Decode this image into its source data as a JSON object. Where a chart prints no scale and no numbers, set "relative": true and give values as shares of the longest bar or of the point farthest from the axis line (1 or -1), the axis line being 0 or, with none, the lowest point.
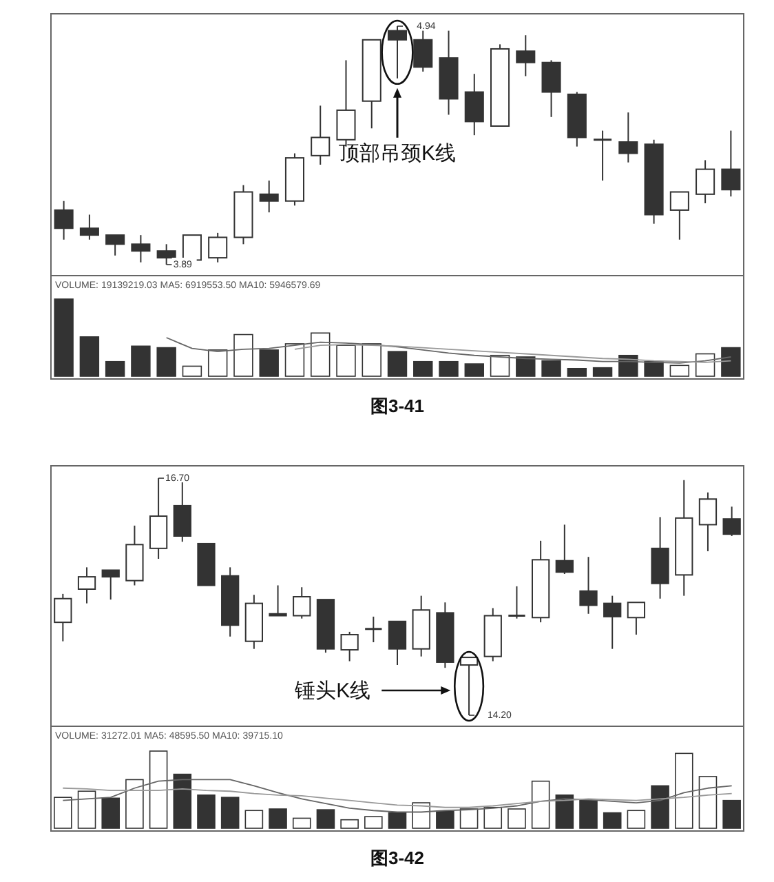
{
  "chart_data": [
    {
      "type": "candlestick",
      "categories": [
        null,
        null,
        null,
        null,
        null,
        null,
        null,
        null,
        null,
        null,
        null,
        null,
        null,
        null,
        null,
        null,
        null,
        null,
        null,
        null,
        null,
        null,
        null,
        null,
        null,
        null,
        null
      ],
      "ohlc": [
        [
          4.13,
          4.17,
          4.0,
          4.05
        ],
        [
          4.05,
          4.11,
          4.0,
          4.02
        ],
        [
          4.02,
          4.02,
          3.93,
          3.98
        ],
        [
          3.98,
          4.02,
          3.9,
          3.95
        ],
        [
          3.95,
          3.98,
          3.89,
          3.92
        ],
        [
          3.91,
          4.02,
          3.91,
          4.02
        ],
        [
          3.92,
          4.03,
          3.9,
          4.01
        ],
        [
          4.01,
          4.24,
          3.98,
          4.21
        ],
        [
          4.2,
          4.26,
          4.12,
          4.17
        ],
        [
          4.17,
          4.38,
          4.15,
          4.36
        ],
        [
          4.37,
          4.59,
          4.33,
          4.45
        ],
        [
          4.44,
          4.79,
          4.41,
          4.57
        ],
        [
          4.61,
          4.88,
          4.49,
          4.88
        ],
        [
          4.92,
          4.94,
          4.71,
          4.88
        ],
        [
          4.88,
          4.92,
          4.74,
          4.76
        ],
        [
          4.8,
          4.92,
          4.55,
          4.62
        ],
        [
          4.65,
          4.73,
          4.46,
          4.52
        ],
        [
          4.5,
          4.86,
          4.5,
          4.84
        ],
        [
          4.83,
          4.9,
          4.72,
          4.78
        ],
        [
          4.78,
          4.79,
          4.54,
          4.65
        ],
        [
          4.64,
          4.65,
          4.41,
          4.45
        ],
        [
          4.44,
          4.48,
          4.26,
          4.44
        ],
        [
          4.43,
          4.56,
          4.34,
          4.38
        ],
        [
          4.42,
          4.44,
          4.07,
          4.11
        ],
        [
          4.13,
          4.21,
          4.0,
          4.21
        ],
        [
          4.2,
          4.35,
          4.16,
          4.31
        ],
        [
          4.31,
          4.48,
          4.19,
          4.22
        ]
      ],
      "annotations": [
        "4.94",
        "3.89",
        "顶部吊颈K线"
      ]
    },
    {
      "type": "bar",
      "relative": true,
      "categories": [
        null,
        null,
        null,
        null,
        null,
        null,
        null,
        null,
        null,
        null,
        null,
        null,
        null,
        null,
        null,
        null,
        null,
        null,
        null,
        null,
        null,
        null,
        null,
        null,
        null,
        null,
        null
      ],
      "series": [
        {
          "type": "bar",
          "colors": [
            "#333333",
            "#333333",
            "#333333",
            "#333333",
            "#333333",
            "#ffffff",
            "#ffffff",
            "#ffffff",
            "#333333",
            "#ffffff",
            "#ffffff",
            "#ffffff",
            "#ffffff",
            "#333333",
            "#333333",
            "#333333",
            "#333333",
            "#ffffff",
            "#333333",
            "#333333",
            "#333333",
            "#333333",
            "#333333",
            "#333333",
            "#ffffff",
            "#ffffff",
            "#333333"
          ],
          "values": [
            1,
            0.51,
            0.19,
            0.39,
            0.37,
            0.13,
            0.34,
            0.54,
            0.34,
            0.42,
            0.56,
            0.4,
            0.42,
            0.32,
            0.19,
            0.19,
            0.16,
            0.27,
            0.25,
            0.2,
            0.1,
            0.11,
            0.27,
            0.19,
            0.14,
            0.29,
            0.37
          ]
        },
        {
          "type": "line",
          "color": "#666666",
          "values": [
            null,
            null,
            null,
            null,
            0.5,
            0.36,
            0.32,
            0.35,
            0.36,
            0.4,
            0.44,
            0.43,
            0.41,
            0.38,
            0.34,
            0.3,
            0.27,
            0.25,
            0.23,
            0.22,
            0.21,
            0.19,
            0.19,
            0.18,
            0.17,
            0.2,
            0.25
          ]
        },
        {
          "type": "line",
          "color": "#999999",
          "values": [
            null,
            null,
            null,
            null,
            null,
            null,
            null,
            null,
            null,
            0.35,
            0.4,
            0.41,
            0.4,
            0.39,
            0.37,
            0.35,
            0.33,
            0.31,
            0.29,
            0.27,
            0.25,
            0.23,
            0.22,
            0.2,
            0.19,
            0.18,
            0.2
          ]
        }
      ],
      "annotations": [
        "VOLUME: 19139219.03  MA5: 6919553.50  MA10: 5946579.69",
        "图3-41"
      ]
    },
    {
      "type": "candlestick",
      "categories": [
        null,
        null,
        null,
        null,
        null,
        null,
        null,
        null,
        null,
        null,
        null,
        null,
        null,
        null,
        null,
        null,
        null,
        null,
        null,
        null,
        null,
        null,
        null,
        null,
        null,
        null,
        null,
        null,
        null
      ],
      "ohlc": [
        [
          15.18,
          15.48,
          14.98,
          15.43
        ],
        [
          15.53,
          15.76,
          15.38,
          15.66
        ],
        [
          15.73,
          15.73,
          15.42,
          15.66
        ],
        [
          15.62,
          16.2,
          15.57,
          16.0
        ],
        [
          15.96,
          16.7,
          15.85,
          16.3
        ],
        [
          16.41,
          16.66,
          16.03,
          16.09
        ],
        [
          16.01,
          16.01,
          15.57,
          15.57
        ],
        [
          15.67,
          15.76,
          15.03,
          15.15
        ],
        [
          14.98,
          15.47,
          14.9,
          15.38
        ],
        [
          15.27,
          15.57,
          15.25,
          15.25
        ],
        [
          15.25,
          15.55,
          15.22,
          15.45
        ],
        [
          15.42,
          15.42,
          14.86,
          14.9
        ],
        [
          14.89,
          15.08,
          14.77,
          15.05
        ],
        [
          15.11,
          15.24,
          14.97,
          15.11
        ],
        [
          15.19,
          15.19,
          14.73,
          14.9
        ],
        [
          14.9,
          15.46,
          14.82,
          15.31
        ],
        [
          15.28,
          15.39,
          14.7,
          14.76
        ],
        [
          14.73,
          14.81,
          14.2,
          14.81
        ],
        [
          14.82,
          15.33,
          14.77,
          15.25
        ],
        [
          15.25,
          15.56,
          15.22,
          15.25
        ],
        [
          15.23,
          16.04,
          15.18,
          15.84
        ],
        [
          15.83,
          16.21,
          15.69,
          15.71
        ],
        [
          15.51,
          15.87,
          15.27,
          15.36
        ],
        [
          15.38,
          15.46,
          14.9,
          15.24
        ],
        [
          15.23,
          15.39,
          15.05,
          15.39
        ],
        [
          15.96,
          16.29,
          15.43,
          15.59
        ],
        [
          15.68,
          16.68,
          15.46,
          16.28
        ],
        [
          16.21,
          16.55,
          15.93,
          16.48
        ],
        [
          16.27,
          16.4,
          16.09,
          16.11
        ]
      ],
      "annotations": [
        "16.70",
        "14.20",
        "锤头K线"
      ]
    },
    {
      "type": "bar",
      "relative": true,
      "categories": [
        null,
        null,
        null,
        null,
        null,
        null,
        null,
        null,
        null,
        null,
        null,
        null,
        null,
        null,
        null,
        null,
        null,
        null,
        null,
        null,
        null,
        null,
        null,
        null,
        null,
        null,
        null,
        null,
        null
      ],
      "series": [
        {
          "type": "bar",
          "colors": [
            "#ffffff",
            "#ffffff",
            "#333333",
            "#ffffff",
            "#ffffff",
            "#333333",
            "#333333",
            "#333333",
            "#ffffff",
            "#333333",
            "#ffffff",
            "#333333",
            "#ffffff",
            "#ffffff",
            "#333333",
            "#ffffff",
            "#333333",
            "#ffffff",
            "#ffffff",
            "#ffffff",
            "#ffffff",
            "#333333",
            "#333333",
            "#333333",
            "#ffffff",
            "#333333",
            "#ffffff",
            "#ffffff",
            "#333333"
          ],
          "values": [
            0.4,
            0.48,
            0.39,
            0.63,
            1,
            0.7,
            0.43,
            0.4,
            0.23,
            0.25,
            0.13,
            0.24,
            0.11,
            0.15,
            0.2,
            0.33,
            0.22,
            0.25,
            0.27,
            0.25,
            0.61,
            0.43,
            0.36,
            0.2,
            0.23,
            0.55,
            0.97,
            0.67,
            0.36
          ]
        },
        {
          "type": "line",
          "color": "#666666",
          "values": [
            0.36,
            0.38,
            0.4,
            0.52,
            0.61,
            0.63,
            0.63,
            0.63,
            0.55,
            0.46,
            0.38,
            0.32,
            0.26,
            0.23,
            0.21,
            0.21,
            0.23,
            0.24,
            0.26,
            0.29,
            0.35,
            0.38,
            0.37,
            0.35,
            0.33,
            0.36,
            0.46,
            0.52,
            0.55
          ]
        },
        {
          "type": "line",
          "color": "#999999",
          "values": [
            0.52,
            0.51,
            0.49,
            0.49,
            0.49,
            0.51,
            0.49,
            0.48,
            0.45,
            0.43,
            0.42,
            0.39,
            0.36,
            0.33,
            0.3,
            0.29,
            0.27,
            0.27,
            0.29,
            0.32,
            0.35,
            0.36,
            0.38,
            0.37,
            0.36,
            0.38,
            0.4,
            0.43,
            0.45
          ]
        }
      ],
      "annotations": [
        "VOLUME: 31272.01  MA5: 48595.50  MA10: 39715.10",
        "图3-42"
      ]
    }
  ]
}
